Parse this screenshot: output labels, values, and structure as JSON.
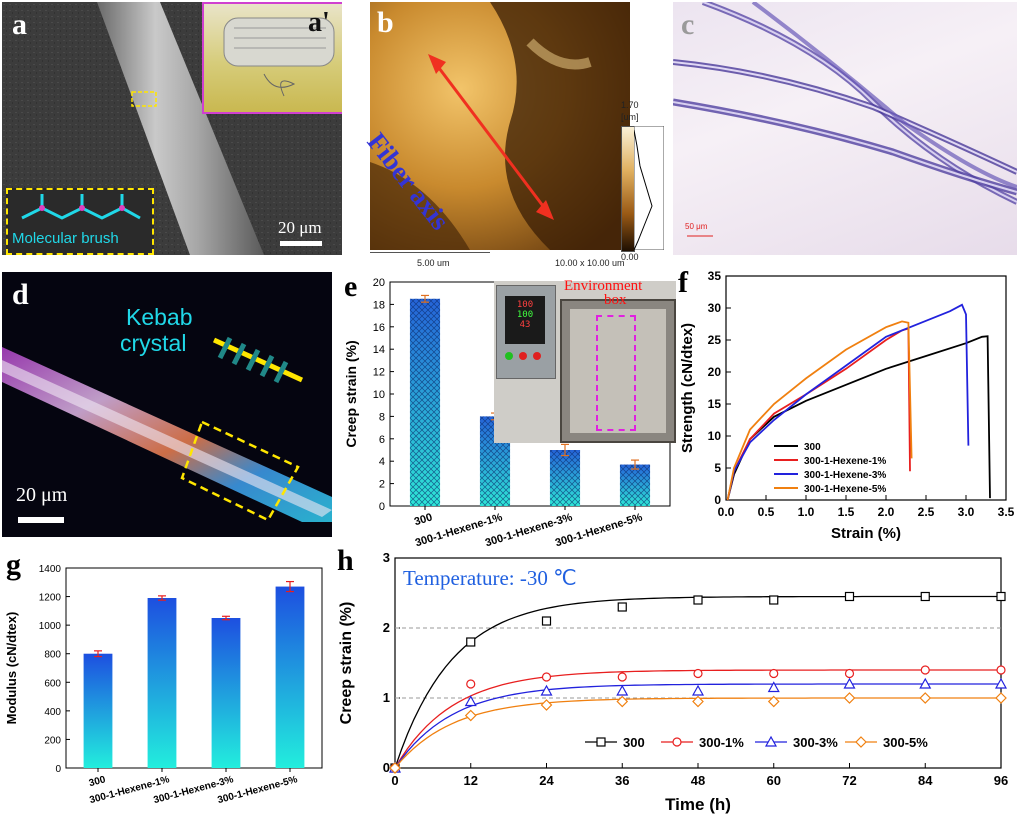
{
  "panels": {
    "a": {
      "label": "a",
      "inset_label": "a'",
      "scale_bar": "20 μm",
      "inset_text": "Molecular brush"
    },
    "b": {
      "label": "b",
      "annotation": "Fiber axis",
      "colorbar_max": "1.70",
      "colorbar_unit": "[um]",
      "colorbar_min": "0.00",
      "scale_text": "5.00 um",
      "size_text": "10.00 x 10.00 um"
    },
    "c": {
      "label": "c",
      "scale_bar": "50 μm"
    },
    "d": {
      "label": "d",
      "annotation_line1": "Kebab",
      "annotation_line2": "crystal",
      "scale_bar": "20 μm"
    },
    "e": {
      "label": "e",
      "inset_text_line1": "Environment",
      "inset_text_line2": "box",
      "controller_readings": [
        "100",
        "100",
        "43"
      ]
    },
    "f": {
      "label": "f"
    },
    "g": {
      "label": "g"
    },
    "h": {
      "label": "h",
      "annotation": "Temperature: -30 ℃"
    }
  },
  "chart_data": [
    {
      "id": "e",
      "type": "bar",
      "categories": [
        "300",
        "300-1-Hexene-1%",
        "300-1-Hexene-3%",
        "300-1-Hexene-5%"
      ],
      "values": [
        18.5,
        8.0,
        5.0,
        3.7
      ],
      "errors": [
        0.3,
        0.3,
        0.5,
        0.4
      ],
      "ylabel": "Creep strain (%)",
      "ylim": [
        0,
        20
      ],
      "yticks": [
        0,
        2,
        4,
        6,
        8,
        10,
        12,
        14,
        16,
        18,
        20
      ],
      "colors": {
        "top": "#2563d8",
        "bottom": "#2ee6d6",
        "error": "#e07020"
      }
    },
    {
      "id": "f",
      "type": "line",
      "xlabel": "Strain (%)",
      "ylabel": "Strength (cN/dtex)",
      "xlim": [
        0,
        3.5
      ],
      "ylim": [
        0,
        35
      ],
      "xticks": [
        "0.0",
        "0.5",
        "1.0",
        "1.5",
        "2.0",
        "2.5",
        "3.0",
        "3.5"
      ],
      "yticks": [
        0,
        5,
        10,
        15,
        20,
        25,
        30,
        35
      ],
      "legend_position": "bottom-right",
      "series": [
        {
          "name": "300",
          "color": "#000000",
          "x": [
            0.02,
            0.1,
            0.3,
            0.6,
            1.0,
            1.5,
            2.0,
            2.5,
            3.0,
            3.2,
            3.27,
            3.3
          ],
          "y": [
            0,
            4.0,
            9.5,
            13.0,
            15.5,
            18.0,
            20.5,
            22.5,
            24.5,
            25.5,
            25.6,
            0.3
          ]
        },
        {
          "name": "300-1-Hexene-1%",
          "color": "#e81f1f",
          "x": [
            0.02,
            0.1,
            0.3,
            0.6,
            1.0,
            1.5,
            2.0,
            2.2,
            2.28,
            2.3
          ],
          "y": [
            0,
            4.5,
            9.5,
            13.5,
            16.5,
            20.5,
            25.0,
            26.5,
            26.8,
            4.5
          ]
        },
        {
          "name": "300-1-Hexene-3%",
          "color": "#2222dd",
          "x": [
            0.02,
            0.1,
            0.3,
            0.6,
            1.0,
            1.5,
            2.0,
            2.5,
            2.8,
            2.95,
            3.0,
            3.03
          ],
          "y": [
            0,
            4.5,
            9.0,
            12.5,
            16.5,
            21.0,
            25.5,
            28.0,
            29.5,
            30.5,
            29.0,
            8.5
          ]
        },
        {
          "name": "300-1-Hexene-5%",
          "color": "#f08010",
          "x": [
            0.02,
            0.1,
            0.3,
            0.6,
            1.0,
            1.5,
            2.0,
            2.2,
            2.28,
            2.32
          ],
          "y": [
            0,
            5.0,
            11.0,
            15.0,
            19.0,
            23.5,
            27.0,
            27.9,
            27.7,
            6.5
          ]
        }
      ]
    },
    {
      "id": "g",
      "type": "bar",
      "categories": [
        "300",
        "300-1-Hexene-1%",
        "300-1-Hexene-3%",
        "300-1-Hexene-5%"
      ],
      "values": [
        800,
        1190,
        1050,
        1270
      ],
      "errors": [
        20,
        15,
        12,
        35
      ],
      "ylabel": "Modulus (cN/dtex)",
      "ylim": [
        0,
        1400
      ],
      "yticks": [
        0,
        200,
        400,
        600,
        800,
        1000,
        1200,
        1400
      ],
      "colors": {
        "top": "#1d4fe0",
        "bottom": "#22eedd",
        "error": "#e81f1f"
      }
    },
    {
      "id": "h",
      "type": "line",
      "xlabel": "Time (h)",
      "ylabel": "Creep strain (%)",
      "xlim": [
        0,
        96
      ],
      "ylim": [
        0,
        3
      ],
      "xticks": [
        0,
        12,
        24,
        36,
        48,
        60,
        72,
        84,
        96
      ],
      "yticks": [
        0,
        1,
        2,
        3
      ],
      "grid": "dashed at y=1 and y=2",
      "legend_position": "bottom",
      "series": [
        {
          "name": "300",
          "color": "#000000",
          "marker": "square",
          "x": [
            0,
            12,
            24,
            36,
            48,
            60,
            72,
            84,
            96
          ],
          "y": [
            0,
            1.8,
            2.1,
            2.3,
            2.4,
            2.4,
            2.45,
            2.45,
            2.45
          ]
        },
        {
          "name": "300-1%",
          "color": "#e81f1f",
          "marker": "circle",
          "x": [
            0,
            12,
            24,
            36,
            48,
            60,
            72,
            84,
            96
          ],
          "y": [
            0,
            1.2,
            1.3,
            1.3,
            1.35,
            1.35,
            1.35,
            1.4,
            1.4
          ]
        },
        {
          "name": "300-3%",
          "color": "#2222dd",
          "marker": "triangle",
          "x": [
            0,
            12,
            24,
            36,
            48,
            60,
            72,
            84,
            96
          ],
          "y": [
            0,
            0.95,
            1.1,
            1.1,
            1.1,
            1.15,
            1.2,
            1.2,
            1.2
          ]
        },
        {
          "name": "300-5%",
          "color": "#f08010",
          "marker": "diamond",
          "x": [
            0,
            12,
            24,
            36,
            48,
            60,
            72,
            84,
            96
          ],
          "y": [
            0,
            0.75,
            0.9,
            0.95,
            0.95,
            0.95,
            1.0,
            1.0,
            1.0
          ]
        }
      ]
    }
  ]
}
